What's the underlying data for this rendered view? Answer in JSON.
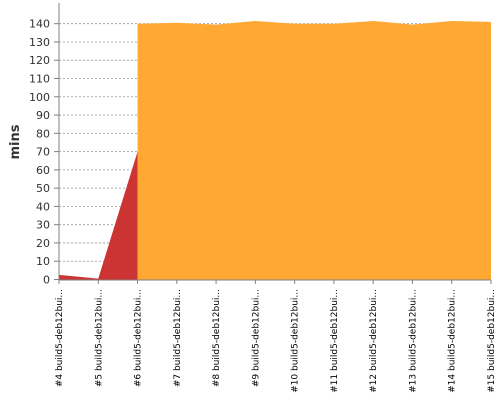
{
  "chart_data": {
    "type": "area",
    "ylabel": "mins",
    "ylim": [
      0,
      145
    ],
    "yticks": [
      0,
      10,
      20,
      30,
      40,
      50,
      60,
      70,
      80,
      90,
      100,
      110,
      120,
      130,
      140
    ],
    "grid": true,
    "categories": [
      "#4 build5-deb12bui...",
      "#5 build5-deb12bui...",
      "#6 build5-deb12bui...",
      "#7 build5-deb12bui...",
      "#8 build5-deb12bui...",
      "#9 build5-deb12bui...",
      "#10 build5-deb12bui...",
      "#11 build5-deb12bui...",
      "#12 build5-deb12bui...",
      "#13 build5-deb12bui...",
      "#14 build5-deb12bui...",
      "#15 build5-deb12bui..."
    ],
    "series": [
      {
        "color": "#cc3333",
        "values": [
          2.5,
          0.5,
          70,
          null,
          null,
          null,
          null,
          null,
          null,
          null,
          null,
          null
        ]
      },
      {
        "color": "#ffa833",
        "values": [
          null,
          null,
          140,
          140.5,
          139.5,
          141.5,
          140,
          140,
          141.5,
          139.5,
          141.5,
          141
        ]
      }
    ]
  }
}
